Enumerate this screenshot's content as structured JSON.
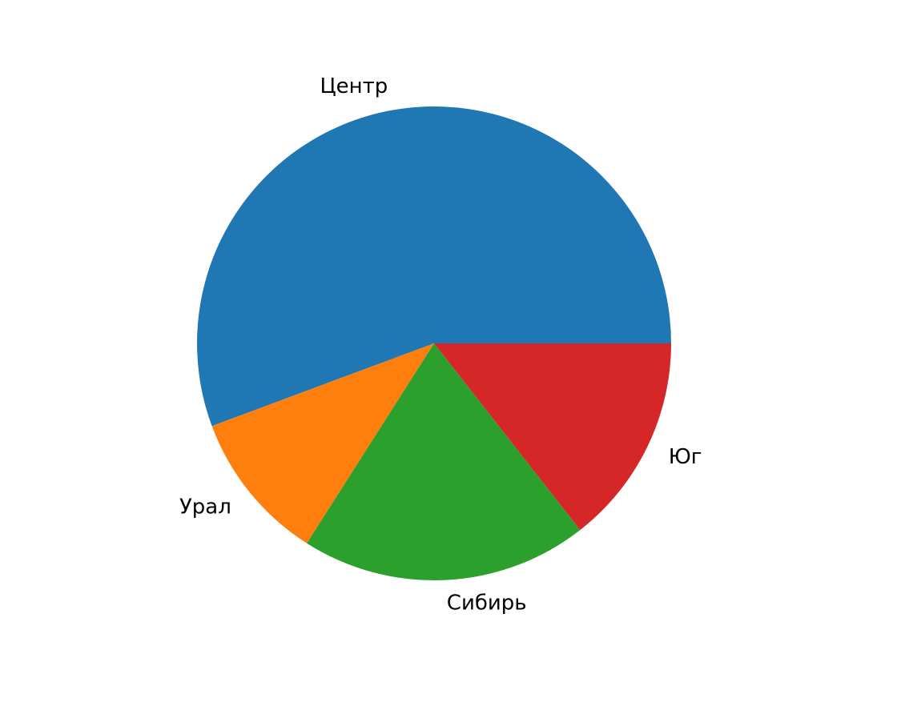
{
  "chart_data": {
    "type": "pie",
    "title": "",
    "labels": [
      "Центр",
      "Урал",
      "Сибирь",
      "Юг"
    ],
    "values": [
      540,
      100,
      190,
      140
    ],
    "colors": [
      "#1f77b4",
      "#ff7f0e",
      "#2ca02c",
      "#d62728"
    ],
    "start_angle_deg": 0,
    "direction": "counterclockwise"
  }
}
